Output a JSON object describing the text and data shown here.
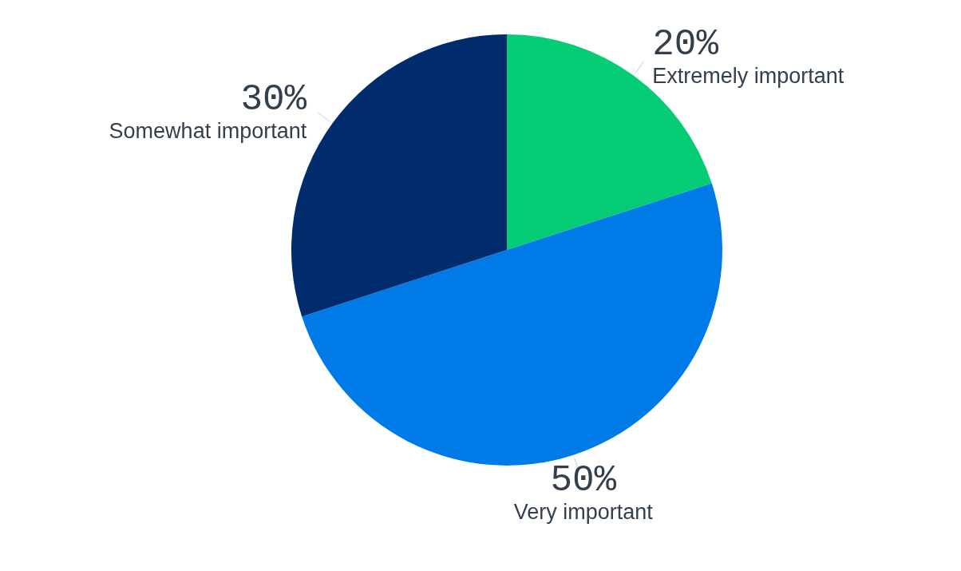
{
  "chart_data": {
    "type": "pie",
    "categories": [
      "Extremely important",
      "Very important",
      "Somewhat important"
    ],
    "values": [
      20,
      50,
      30
    ],
    "colors": [
      "#06cc76",
      "#007ae6",
      "#002c6e"
    ],
    "value_labels": [
      "20%",
      "50%",
      "30%"
    ]
  }
}
